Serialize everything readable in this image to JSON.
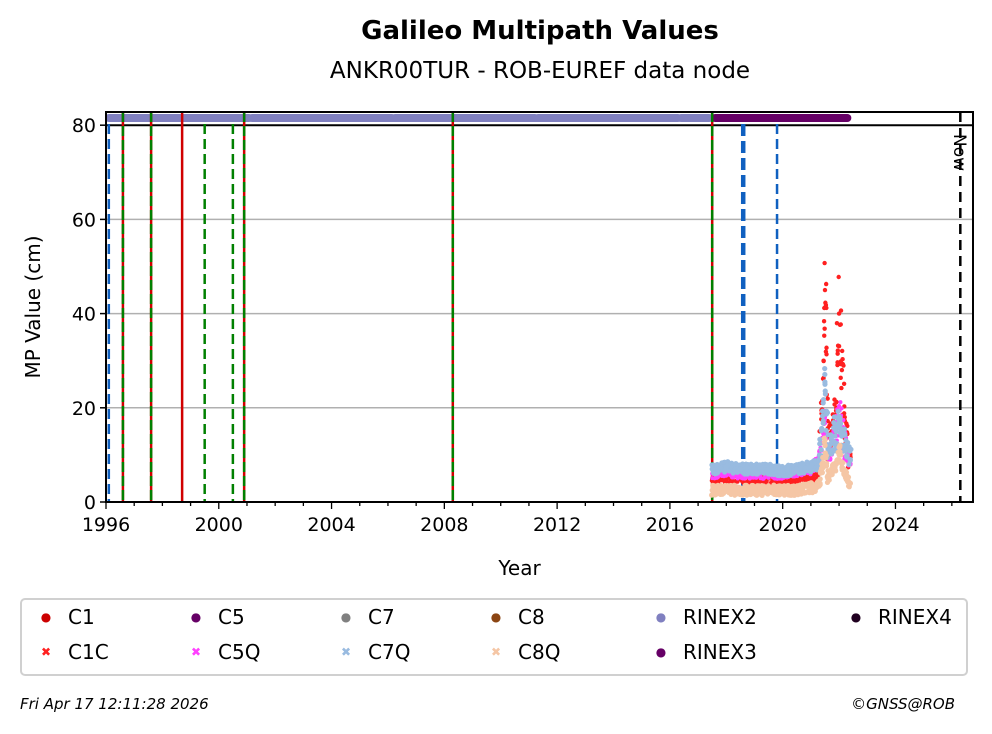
{
  "chart_data": {
    "type": "scatter",
    "title": "Galileo Multipath Values",
    "subtitle": "ANKR00TUR - ROB-EUREF data node",
    "xlabel": "Year",
    "ylabel": "MP Value (cm)",
    "xlim": [
      1996.0,
      2026.75
    ],
    "ylim": [
      0,
      82.8
    ],
    "xticks": [
      "1996",
      "2000",
      "2004",
      "2008",
      "2012",
      "2016",
      "2020",
      "2024"
    ],
    "yticks": [
      "0",
      "20",
      "40",
      "60",
      "80"
    ],
    "grid": "horizontal",
    "now_label": "Now",
    "now_year": 2026.3,
    "rinex_bands": [
      {
        "name": "RINEX2",
        "from": 1996.0,
        "to": 2017.5,
        "color": "#8080c0"
      },
      {
        "name": "RINEX3",
        "from": 2017.5,
        "to": 2022.4,
        "color": "#660066"
      }
    ],
    "event_lines": [
      {
        "year": 1996.1,
        "style": "blue-dashed"
      },
      {
        "year": 1996.6,
        "style": "red-green"
      },
      {
        "year": 1997.6,
        "style": "red-green"
      },
      {
        "year": 1998.7,
        "style": "red"
      },
      {
        "year": 1999.5,
        "style": "green-dashed"
      },
      {
        "year": 2000.5,
        "style": "green-dashed"
      },
      {
        "year": 2000.9,
        "style": "red-green"
      },
      {
        "year": 2008.3,
        "style": "red-green"
      },
      {
        "year": 2017.5,
        "style": "red-green"
      },
      {
        "year": 2018.6,
        "style": "blue-dashed-thick"
      },
      {
        "year": 2019.8,
        "style": "blue-dashed"
      }
    ],
    "series": [
      {
        "name": "C1C",
        "color": "#ff2020",
        "x": [
          2017.5,
          2018.0,
          2018.5,
          2019.0,
          2019.5,
          2020.0,
          2020.5,
          2021.0,
          2021.3,
          2021.45,
          2021.5,
          2021.6,
          2021.9,
          2022.0,
          2022.1,
          2022.2,
          2022.3,
          2022.4
        ],
        "y": [
          5,
          5,
          5,
          4.5,
          5,
          4.5,
          5,
          5,
          6,
          30,
          45,
          12,
          20,
          40,
          28,
          18,
          12,
          8
        ]
      },
      {
        "name": "C5Q",
        "color": "#ff40ff",
        "x": [
          2017.5,
          2018.0,
          2018.5,
          2019.0,
          2019.5,
          2020.0,
          2020.5,
          2021.0,
          2021.3,
          2021.5,
          2021.6,
          2021.9,
          2022.0,
          2022.2,
          2022.4
        ],
        "y": [
          6,
          6.5,
          6,
          6,
          6,
          6,
          6.5,
          7,
          9,
          18,
          10,
          14,
          18,
          12,
          8
        ]
      },
      {
        "name": "C7Q",
        "color": "#99bbe0",
        "x": [
          2017.5,
          2018.0,
          2018.5,
          2019.0,
          2019.5,
          2020.0,
          2020.5,
          2021.0,
          2021.3,
          2021.5,
          2021.6,
          2021.9,
          2022.0,
          2022.2,
          2022.4
        ],
        "y": [
          7,
          7.5,
          7,
          7,
          7,
          6.5,
          7,
          7.5,
          8,
          25,
          12,
          15,
          16,
          12,
          9
        ]
      },
      {
        "name": "C8Q",
        "color": "#f5c6a5",
        "x": [
          2017.5,
          2018.0,
          2018.5,
          2019.0,
          2019.5,
          2020.0,
          2020.5,
          2021.0,
          2021.3,
          2021.5,
          2021.6,
          2021.9,
          2022.0,
          2022.2,
          2022.4
        ],
        "y": [
          2.5,
          2.5,
          2.5,
          2.5,
          2.5,
          2.5,
          2.5,
          3,
          3.5,
          12,
          5,
          8,
          10,
          6,
          4
        ]
      }
    ],
    "legend_placement": "bottom",
    "legend": [
      {
        "label": "C1",
        "color": "#cc0000",
        "marker": "●"
      },
      {
        "label": "C5",
        "color": "#660066",
        "marker": "●"
      },
      {
        "label": "C7",
        "color": "#808080",
        "marker": "●"
      },
      {
        "label": "C8",
        "color": "#8b4513",
        "marker": "●"
      },
      {
        "label": "RINEX2",
        "color": "#8080c0",
        "marker": "●"
      },
      {
        "label": "RINEX4",
        "color": "#200020",
        "marker": "●"
      },
      {
        "label": "C1C",
        "color": "#ff2020",
        "marker": "✖"
      },
      {
        "label": "C5Q",
        "color": "#ff40ff",
        "marker": "✖"
      },
      {
        "label": "C7Q",
        "color": "#99bbe0",
        "marker": "✖"
      },
      {
        "label": "C8Q",
        "color": "#f5c6a5",
        "marker": "✖"
      },
      {
        "label": "RINEX3",
        "color": "#660066",
        "marker": "●"
      }
    ]
  },
  "footer": {
    "date": "Fri Apr 17 12:11:28 2026",
    "copyright": "©GNSS@ROB"
  }
}
